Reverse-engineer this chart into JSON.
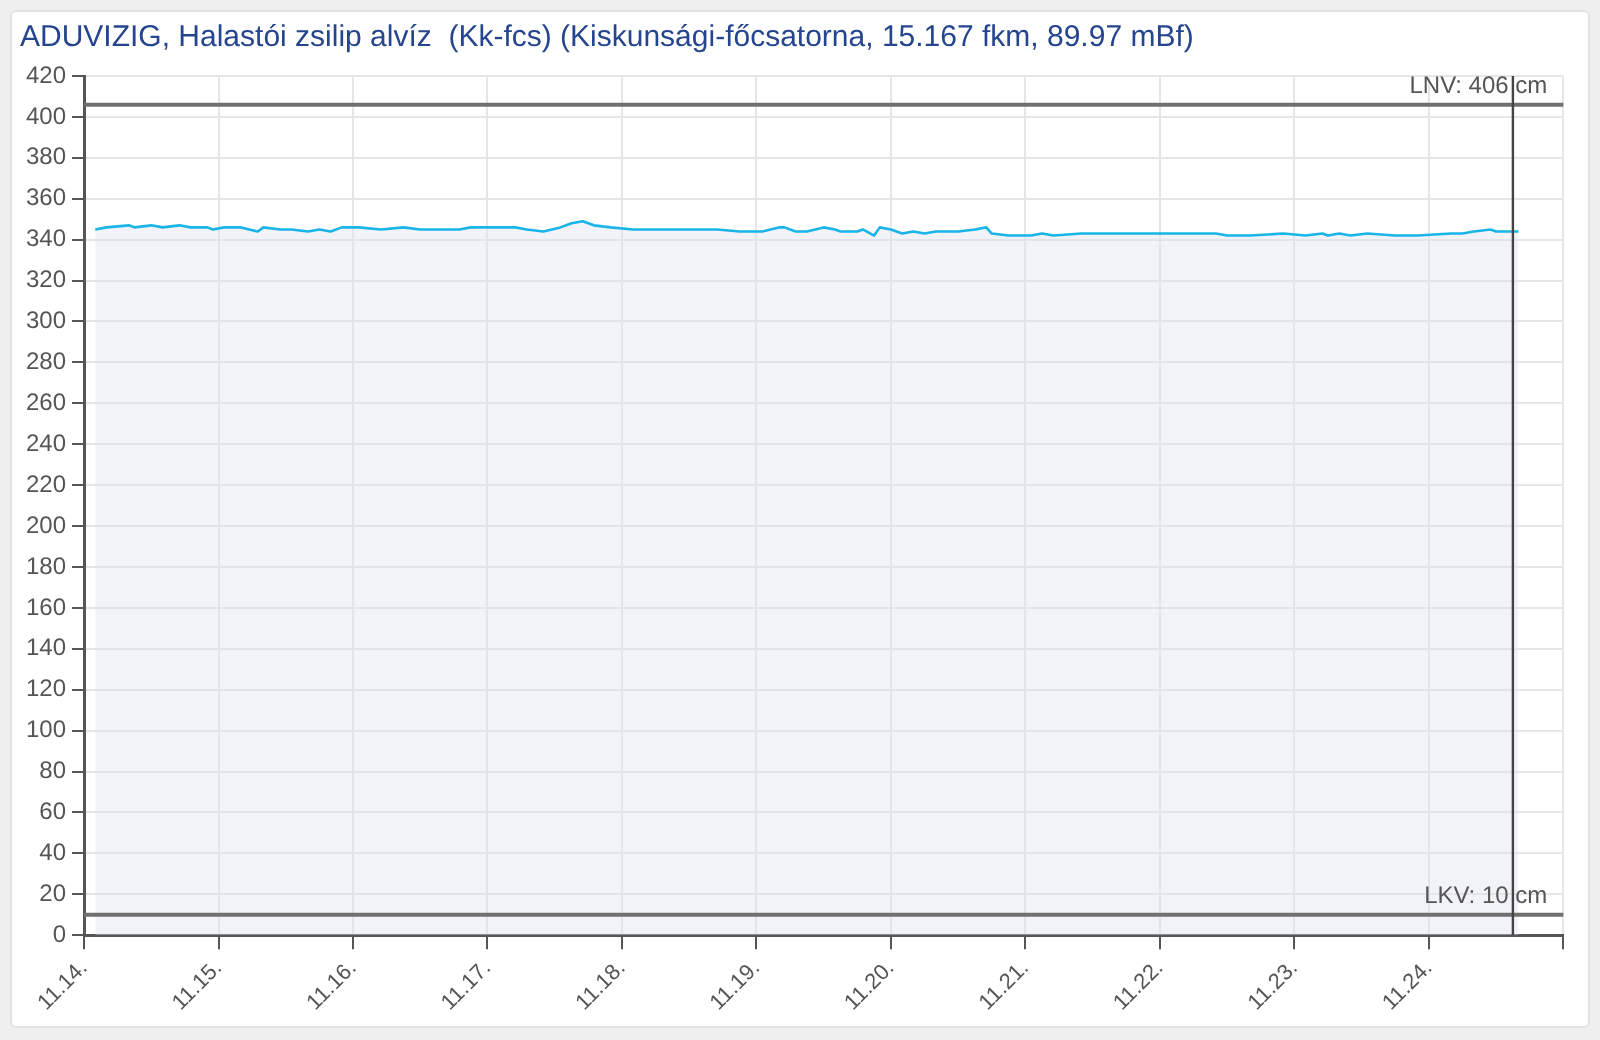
{
  "chart_data": {
    "type": "area",
    "title": "ADUVIZIG, Halastói zsilip alvíz  (Kk-fcs) (Kiskunsági-főcsatorna, 15.167 fkm, 89.97 mBf)",
    "x": [
      "--11-14T02:00",
      "--11-14T04:00",
      "--11-14T08:00",
      "--11-14T09:00",
      "--11-14T12:00",
      "--11-14T14:00",
      "--11-14T17:00",
      "--11-14T19:00",
      "--11-14T22:00",
      "--11-14T23:00",
      "--11-15T01:00",
      "--11-15T04:00",
      "--11-15T07:00",
      "--11-15T08:00",
      "--11-15T11:00",
      "--11-15T13:00",
      "--11-15T16:00",
      "--11-15T18:00",
      "--11-15T20:00",
      "--11-15T22:00",
      "--11-16T01:00",
      "--11-16T05:00",
      "--11-16T09:00",
      "--11-16T12:00",
      "--11-16T19:00",
      "--11-16T21:00",
      "--11-17T00:00",
      "--11-17T05:00",
      "--11-17T07:00",
      "--11-17T10:00",
      "--11-17T13:00",
      "--11-17T15:00",
      "--11-17T17:00",
      "--11-17T19:00",
      "--11-17T22:00",
      "--11-18T02:00",
      "--11-18T06:00",
      "--11-18T11:00",
      "--11-18T13:00",
      "--11-18T17:00",
      "--11-18T21:00",
      "--11-19T01:00",
      "--11-19T04:00",
      "--11-19T05:00",
      "--11-19T07:00",
      "--11-19T09:00",
      "--11-19T12:00",
      "--11-19T14:00",
      "--11-19T15:00",
      "--11-19T18:00",
      "--11-19T19:00",
      "--11-19T21:00",
      "--11-19T22:00",
      "--11-20T00:00",
      "--11-20T02:00",
      "--11-20T04:00",
      "--11-20T06:00",
      "--11-20T08:00",
      "--11-20T12:00",
      "--11-20T15:00",
      "--11-20T17:00",
      "--11-20T18:00",
      "--11-20T21:00",
      "--11-21T01:00",
      "--11-21T03:00",
      "--11-21T05:00",
      "--11-21T10:00",
      "--11-21T13:00",
      "--11-21T23:00",
      "--11-22T02:00",
      "--11-22T10:00",
      "--11-22T12:00",
      "--11-22T16:00",
      "--11-22T22:00",
      "--11-23T02:00",
      "--11-23T05:00",
      "--11-23T06:00",
      "--11-23T08:00",
      "--11-23T10:00",
      "--11-23T13:00",
      "--11-23T18:00",
      "--11-23T22:00",
      "--11-24T04:00",
      "--11-24T06:00",
      "--11-24T08:00",
      "--11-24T11:00",
      "--11-24T12:00",
      "--11-24T14:00",
      "--11-24T16:00"
    ],
    "series": [
      {
        "color": "#19b5e8",
        "values": [
          345,
          346,
          347,
          346,
          347,
          346,
          347,
          346,
          346,
          345,
          346,
          346,
          344,
          346,
          345,
          345,
          344,
          345,
          344,
          346,
          346,
          345,
          346,
          345,
          345,
          346,
          346,
          346,
          345,
          344,
          346,
          348,
          349,
          347,
          346,
          345,
          345,
          345,
          345,
          345,
          344,
          344,
          346,
          346,
          344,
          344,
          346,
          345,
          344,
          344,
          345,
          342,
          346,
          345,
          343,
          344,
          343,
          344,
          344,
          345,
          346,
          343,
          342,
          342,
          343,
          342,
          343,
          343,
          343,
          343,
          343,
          342,
          342,
          343,
          342,
          343,
          342,
          343,
          342,
          343,
          342,
          342,
          343,
          343,
          344,
          345,
          344,
          344,
          344
        ]
      }
    ],
    "xlim": [
      "--11-14",
      "--11-25"
    ],
    "xticks": [
      {
        "value": "--11-14",
        "label": "11.14."
      },
      {
        "value": "--11-15",
        "label": "11.15."
      },
      {
        "value": "--11-16",
        "label": "11.16."
      },
      {
        "value": "--11-17",
        "label": "11.17."
      },
      {
        "value": "--11-18",
        "label": "11.18."
      },
      {
        "value": "--11-19",
        "label": "11.19."
      },
      {
        "value": "--11-20",
        "label": "11.20."
      },
      {
        "value": "--11-21",
        "label": "11.21."
      },
      {
        "value": "--11-22",
        "label": "11.22."
      },
      {
        "value": "--11-23",
        "label": "11.23."
      },
      {
        "value": "--11-24",
        "label": "11.24."
      },
      {
        "value": "--11-25",
        "label": null
      }
    ],
    "ylim": [
      0,
      420
    ],
    "yticks": [
      0,
      20,
      40,
      60,
      80,
      100,
      120,
      140,
      160,
      180,
      200,
      220,
      240,
      260,
      280,
      300,
      320,
      340,
      360,
      380,
      400,
      420
    ],
    "ref_lines": [
      {
        "axis": "y",
        "value": 406,
        "label": "LNV: 406 cm",
        "color": "#707070"
      },
      {
        "axis": "y",
        "value": 10,
        "label": "LKV: 10 cm",
        "color": "#707070"
      },
      {
        "axis": "x",
        "value": "--11-24T15:00",
        "color": "#444444"
      }
    ],
    "grid": true
  }
}
